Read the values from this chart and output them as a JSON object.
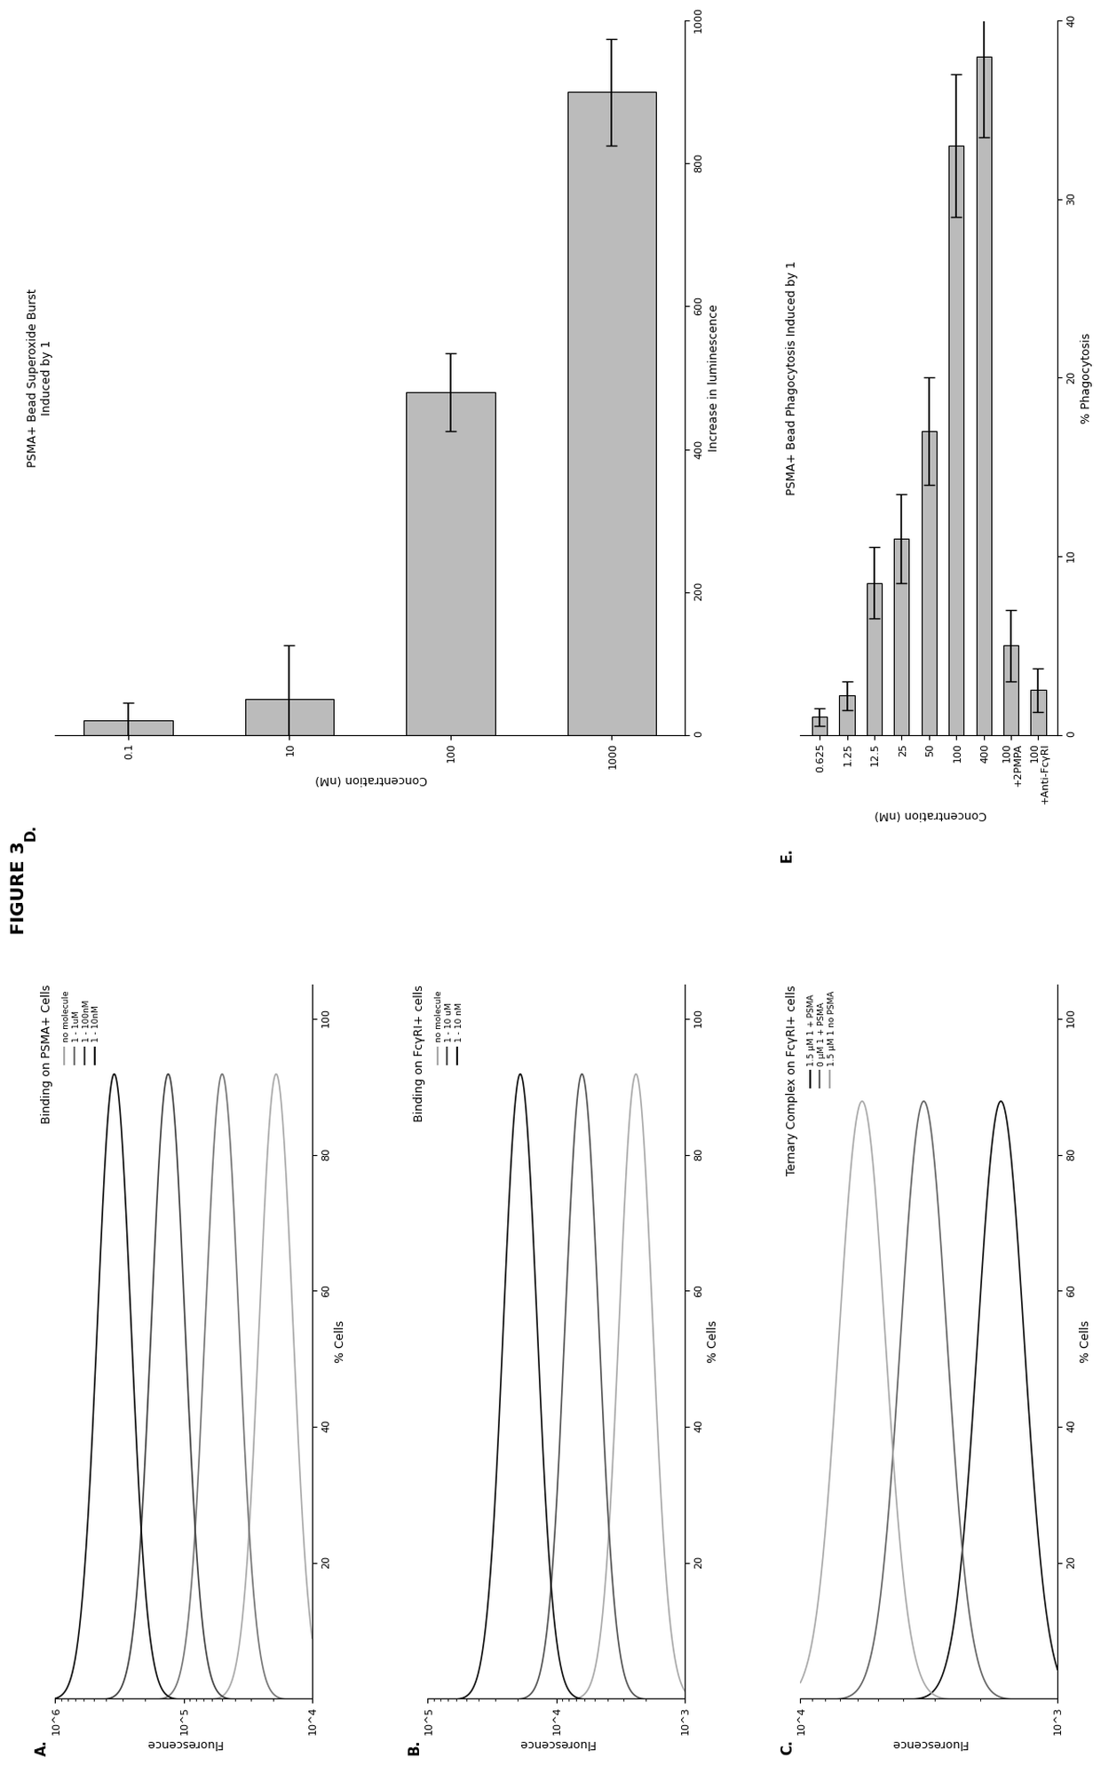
{
  "title": "FIGURE 3",
  "panel_A": {
    "label": "A.",
    "title": "Binding on PSMA+ Cells",
    "xlabel": "Fluorescence",
    "ylabel": "% Cells",
    "log_xmin": 4,
    "log_xmax": 6,
    "xtick_vals": [
      10000.0,
      100000.0,
      1000000.0
    ],
    "xtick_labels": [
      "10^4",
      "10^5",
      "10^6"
    ],
    "yticks": [
      20,
      40,
      60,
      80,
      100
    ],
    "legend_lines": [
      {
        "label": "no molecule",
        "color": "#aaaaaa"
      },
      {
        "label": "1 - 1uM",
        "color": "#777777"
      },
      {
        "label": "1 - 100nM",
        "color": "#444444"
      },
      {
        "label": "1 - 10nM",
        "color": "#111111"
      }
    ],
    "curves": [
      {
        "color": "#aaaaaa",
        "mu": 4.28,
        "sigma": 0.13,
        "amp": 92
      },
      {
        "color": "#777777",
        "mu": 4.7,
        "sigma": 0.13,
        "amp": 92
      },
      {
        "color": "#444444",
        "mu": 5.12,
        "sigma": 0.13,
        "amp": 92
      },
      {
        "color": "#111111",
        "mu": 5.54,
        "sigma": 0.13,
        "amp": 92
      }
    ]
  },
  "panel_B": {
    "label": "B.",
    "title": "Binding on FcγRI+ cells",
    "xlabel": "Fluorescence",
    "ylabel": "% Cells",
    "log_xmin": 3,
    "log_xmax": 5,
    "xtick_vals": [
      1000.0,
      10000.0,
      100000.0
    ],
    "xtick_labels": [
      "10^3",
      "10^4",
      "10^5"
    ],
    "yticks": [
      20,
      40,
      60,
      80,
      100
    ],
    "legend_lines": [
      {
        "label": "no molecule",
        "color": "#aaaaaa"
      },
      {
        "label": "1 - 10 uM",
        "color": "#555555"
      },
      {
        "label": "1 - 10 nM",
        "color": "#111111"
      }
    ],
    "curves": [
      {
        "color": "#aaaaaa",
        "mu": 3.38,
        "sigma": 0.13,
        "amp": 92
      },
      {
        "color": "#555555",
        "mu": 3.8,
        "sigma": 0.13,
        "amp": 92
      },
      {
        "color": "#111111",
        "mu": 4.28,
        "sigma": 0.13,
        "amp": 92
      }
    ]
  },
  "panel_C": {
    "label": "C.",
    "title": "Ternary Complex on FcγRI+ cells",
    "xlabel": "Fluorescence",
    "ylabel": "% Cells",
    "log_xmin": 3,
    "log_xmax": 4,
    "xtick_vals": [
      1000.0,
      10000.0
    ],
    "xtick_labels": [
      "10^3",
      "10^4"
    ],
    "yticks": [
      20,
      40,
      60,
      80,
      100
    ],
    "legend_lines": [
      {
        "label": "1.5 μM 1 + PSMA",
        "color": "#111111"
      },
      {
        "label": "0 μM 1 + PSMA",
        "color": "#666666"
      },
      {
        "label": "1.5 μM 1 no PSMA",
        "color": "#aaaaaa"
      }
    ],
    "curves": [
      {
        "color": "#111111",
        "mu": 3.22,
        "sigma": 0.09,
        "amp": 88
      },
      {
        "color": "#666666",
        "mu": 3.52,
        "sigma": 0.09,
        "amp": 88
      },
      {
        "color": "#aaaaaa",
        "mu": 3.76,
        "sigma": 0.09,
        "amp": 88
      }
    ]
  },
  "panel_D": {
    "label": "D.",
    "title": "PSMA+ Bead Superoxide Burst\nInduced by 1",
    "ylabel": "Increase in luminescence",
    "xlabel": "Concentration (nM)",
    "categories": [
      "0.1",
      "10",
      "100",
      "1000"
    ],
    "values": [
      20,
      50,
      480,
      900
    ],
    "errors": [
      25,
      75,
      55,
      75
    ],
    "bar_color": "#bbbbbb",
    "xlim": [
      0,
      1000
    ],
    "xticks": [
      0,
      200,
      400,
      600,
      800,
      1000
    ]
  },
  "panel_E": {
    "label": "E.",
    "title": "PSMA+ Bead Phagocytosis Induced by 1",
    "ylabel": "% Phagocytosis",
    "xlabel": "Concentration (nM)",
    "categories": [
      "0.625",
      "1.25",
      "12.5",
      "25",
      "50",
      "100",
      "400",
      "100\n+2PMPA",
      "100\n+Anti-FcγRI"
    ],
    "values": [
      1.0,
      2.2,
      8.5,
      11.0,
      17.0,
      33.0,
      38.0,
      5.0,
      2.5
    ],
    "errors": [
      0.5,
      0.8,
      2.0,
      2.5,
      3.0,
      4.0,
      4.5,
      2.0,
      1.2
    ],
    "bar_color": "#bbbbbb",
    "xlim": [
      0,
      40
    ],
    "xticks": [
      0,
      10,
      20,
      30,
      40
    ]
  },
  "background_color": "#ffffff"
}
